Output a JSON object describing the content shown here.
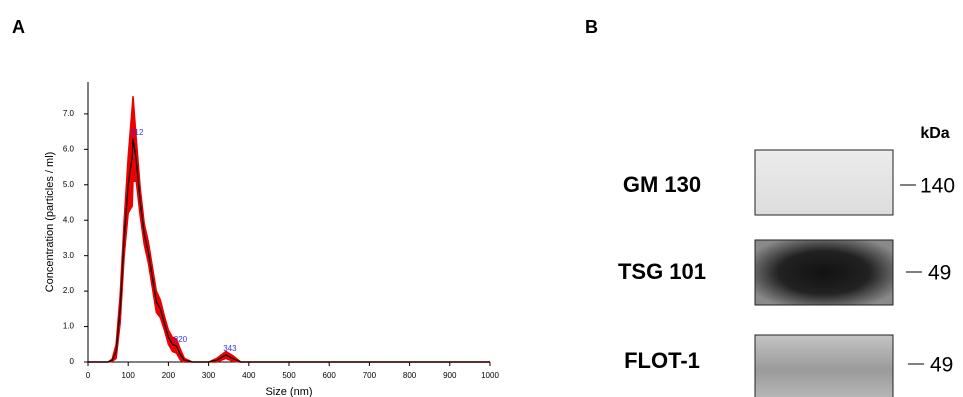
{
  "panels": {
    "a": "A",
    "b": "B"
  },
  "chart_data": {
    "type": "line",
    "xlabel": "Size (nm)",
    "ylabel": "Concentration (particles / ml)",
    "x": [
      0,
      50,
      60,
      70,
      80,
      90,
      100,
      110,
      112,
      120,
      130,
      140,
      150,
      160,
      170,
      180,
      190,
      200,
      210,
      220,
      230,
      240,
      260,
      300,
      320,
      343,
      360,
      380,
      1000
    ],
    "values": [
      0,
      0,
      0.05,
      0.3,
      1.5,
      3.5,
      5.0,
      5.8,
      6.3,
      5.7,
      4.5,
      3.6,
      3.1,
      2.4,
      1.7,
      1.5,
      1.1,
      0.7,
      0.5,
      0.45,
      0.2,
      0.05,
      0,
      0,
      0.05,
      0.2,
      0.1,
      0,
      0
    ],
    "error": [
      0,
      0,
      0.03,
      0.2,
      0.4,
      0.5,
      0.8,
      1.4,
      1.2,
      0.6,
      0.4,
      0.3,
      0.3,
      0.3,
      0.3,
      0.25,
      0.2,
      0.2,
      0.2,
      0.2,
      0.15,
      0.05,
      0,
      0,
      0.05,
      0.1,
      0.08,
      0,
      0
    ],
    "color": "#000000",
    "error_color": "#ee0000",
    "peaks": [
      112,
      220,
      343
    ],
    "peak_color": "#3333ff",
    "xlim": [
      0,
      1000
    ],
    "xticks": [
      0,
      100,
      200,
      300,
      400,
      500,
      600,
      700,
      800,
      900,
      1000
    ],
    "ylim": [
      0,
      7.9
    ],
    "yticks": [
      0,
      {
        "value": 1,
        "label": "1.0"
      },
      {
        "value": 2,
        "label": "2.0"
      },
      {
        "value": 3,
        "label": "3.0"
      },
      {
        "value": 4,
        "label": "4.0"
      },
      {
        "value": 5,
        "label": "5.0"
      },
      {
        "value": 6,
        "label": "6.0"
      },
      {
        "value": 7,
        "label": "7.0"
      }
    ]
  },
  "blot": {
    "unit": "kDa",
    "rows": [
      {
        "protein": "GM 130",
        "marker": "140"
      },
      {
        "protein": "TSG 101",
        "marker": "49"
      },
      {
        "protein": "FLOT-1",
        "marker": "49"
      }
    ]
  }
}
